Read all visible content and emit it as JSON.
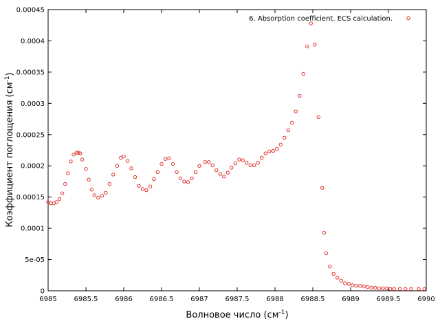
{
  "chart_data": {
    "type": "scatter",
    "title": "",
    "xlabel": "Волновое число (см",
    "xlabel_sup": "-1",
    "xlabel_end": ")",
    "ylabel": "Коэффициент поглощения (см",
    "ylabel_sup": "-1",
    "ylabel_end": ")",
    "xlim": [
      6985,
      6990
    ],
    "ylim": [
      0,
      0.00045
    ],
    "x_ticks": [
      6985,
      6985.5,
      6986,
      6986.5,
      6987,
      6987.5,
      6988,
      6988.5,
      6989,
      6989.5,
      6990
    ],
    "x_tick_labels": [
      "6985",
      "6985.5",
      "6986",
      "6986.5",
      "6987",
      "6987.5",
      "6988",
      "6988.5",
      "6989",
      "6989.5",
      "6990"
    ],
    "y_ticks": [
      0,
      5e-05,
      0.0001,
      0.00015,
      0.0002,
      0.00025,
      0.0003,
      0.00035,
      0.0004,
      0.00045
    ],
    "y_tick_labels": [
      "0",
      "5e-05",
      "0.0001",
      "0.00015",
      "0.0002",
      "0.00025",
      "0.0003",
      "0.00035",
      "0.0004",
      "0.00045"
    ],
    "grid": false,
    "legend_position": "top-right",
    "marker_color": "#e0302a",
    "series": [
      {
        "name": "6. Absorption coefficient. ECS calculation.",
        "x": [
          6985.0,
          6985.037,
          6985.075,
          6985.112,
          6985.15,
          6985.187,
          6985.225,
          6985.262,
          6985.3,
          6985.337,
          6985.375,
          6985.4,
          6985.425,
          6985.45,
          6985.5,
          6985.537,
          6985.575,
          6985.612,
          6985.662,
          6985.712,
          6985.762,
          6985.812,
          6985.862,
          6985.912,
          6985.962,
          6986.0,
          6986.05,
          6986.1,
          6986.15,
          6986.2,
          6986.25,
          6986.3,
          6986.35,
          6986.4,
          6986.45,
          6986.5,
          6986.55,
          6986.6,
          6986.65,
          6986.7,
          6986.75,
          6986.8,
          6986.85,
          6986.9,
          6986.95,
          6987.0,
          6987.075,
          6987.125,
          6987.175,
          6987.225,
          6987.275,
          6987.325,
          6987.375,
          6987.425,
          6987.475,
          6987.525,
          6987.575,
          6987.625,
          6987.675,
          6987.725,
          6987.775,
          6987.825,
          6987.875,
          6987.925,
          6987.975,
          6988.025,
          6988.075,
          6988.125,
          6988.175,
          6988.225,
          6988.275,
          6988.325,
          6988.375,
          6988.425,
          6988.475,
          6988.525,
          6988.575,
          6988.625,
          6988.65,
          6988.675,
          6988.725,
          6988.775,
          6988.825,
          6988.875,
          6988.925,
          6988.975,
          6989.025,
          6989.075,
          6989.125,
          6989.175,
          6989.225,
          6989.275,
          6989.325,
          6989.375,
          6989.425,
          6989.475,
          6989.525,
          6989.575,
          6989.65,
          6989.725,
          6989.8,
          6989.9,
          6989.975
        ],
        "y": [
          0.000142,
          0.00014,
          0.00014,
          0.000142,
          0.000147,
          0.000156,
          0.000171,
          0.000188,
          0.000207,
          0.000218,
          0.000221,
          0.000221,
          0.00022,
          0.00021,
          0.000195,
          0.000178,
          0.000162,
          0.000153,
          0.000149,
          0.000152,
          0.000157,
          0.000171,
          0.000186,
          0.0002,
          0.000213,
          0.000215,
          0.000208,
          0.000196,
          0.000182,
          0.000168,
          0.000163,
          0.000161,
          0.000167,
          0.000179,
          0.00019,
          0.000203,
          0.000211,
          0.000212,
          0.000203,
          0.00019,
          0.00018,
          0.000175,
          0.000174,
          0.00018,
          0.00019,
          0.0002,
          0.000206,
          0.000206,
          0.000201,
          0.000193,
          0.000187,
          0.000183,
          0.000189,
          0.000197,
          0.000204,
          0.00021,
          0.000209,
          0.000205,
          0.000201,
          0.000201,
          0.000205,
          0.000213,
          0.00022,
          0.000223,
          0.000224,
          0.000227,
          0.000234,
          0.000245,
          0.000257,
          0.000269,
          0.000287,
          0.000312,
          0.000347,
          0.000391,
          0.000428,
          0.000394,
          0.000278,
          0.000165,
          9.3e-05,
          6e-05,
          3.9e-05,
          2.7e-05,
          2.1e-05,
          1.6e-05,
          1.2e-05,
          1.1e-05,
          9e-06,
          8e-06,
          8e-06,
          7e-06,
          6e-06,
          5e-06,
          5e-06,
          4e-06,
          4e-06,
          4e-06,
          3e-06,
          3e-06,
          3e-06,
          3e-06,
          3e-06,
          3e-06,
          3e-06
        ]
      }
    ]
  }
}
